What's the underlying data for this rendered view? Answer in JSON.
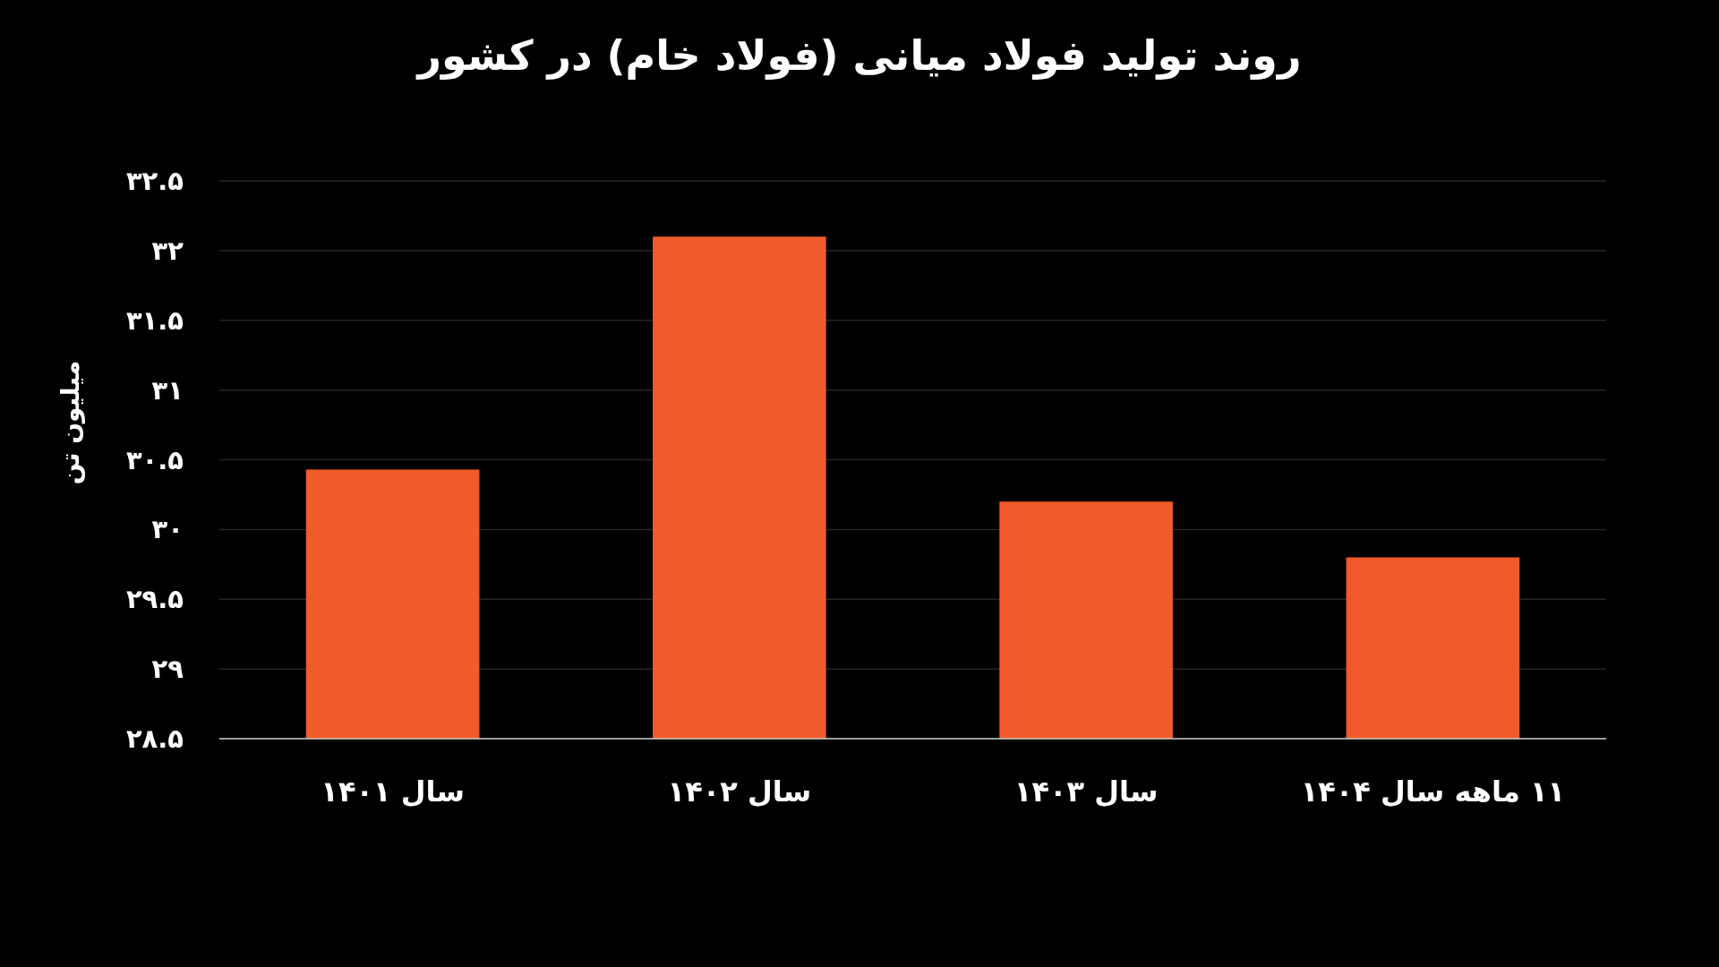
{
  "chart_data": {
    "type": "bar",
    "title": "روند تولید فولاد میانی (فولاد خام) در کشور",
    "ylabel": "میلیون تن",
    "categories": [
      "سال ۱۴۰۱",
      "سال ۱۴۰۲",
      "سال ۱۴۰۳",
      "۱۱ ماهه سال ۱۴۰۴"
    ],
    "values": [
      30.43,
      32.1,
      30.2,
      29.8
    ],
    "color": "#f15a2b",
    "ylim": [
      28.5,
      32.5
    ],
    "yticks": [
      {
        "value": 28.5,
        "label": "۲۸.۵"
      },
      {
        "value": 29,
        "label": "۲۹"
      },
      {
        "value": 29.5,
        "label": "۲۹.۵"
      },
      {
        "value": 30,
        "label": "۳۰"
      },
      {
        "value": 30.5,
        "label": "۳۰.۵"
      },
      {
        "value": 31,
        "label": "۳۱"
      },
      {
        "value": 31.5,
        "label": "۳۱.۵"
      },
      {
        "value": 32,
        "label": "۳۲"
      },
      {
        "value": 32.5,
        "label": "۳۲.۵"
      }
    ],
    "grid": "y"
  }
}
